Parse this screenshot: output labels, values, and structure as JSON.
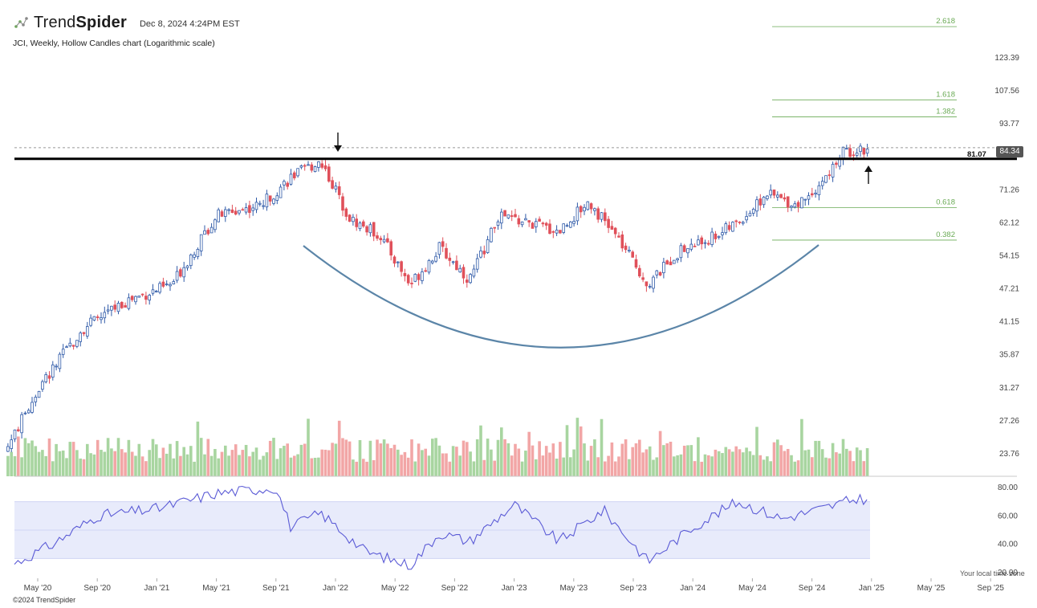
{
  "header": {
    "brand_name_regular": "Trend",
    "brand_name_bold": "Spider",
    "timestamp": "Dec 8, 2024 4:24PM EST",
    "subtitle": "JCI, Weekly, Hollow Candles chart (Logarithmic scale)"
  },
  "footer": {
    "copyright": "©2024 TrendSpider",
    "timezone_note": "Your local time zone"
  },
  "price_panel": {
    "last_price": "84.34",
    "resistance_label": "81.07",
    "resistance_value": 81.07,
    "prior_high_dashed": 84.9,
    "y_ticks": [
      "123.39",
      "107.56",
      "93.77",
      "81.07",
      "71.26",
      "62.12",
      "54.15",
      "47.21",
      "41.15",
      "35.87",
      "31.27",
      "27.26",
      "23.76"
    ],
    "fib_levels": [
      {
        "label": "2.618",
        "value": 140.5
      },
      {
        "label": "1.618",
        "value": 103.6
      },
      {
        "label": "1.382",
        "value": 96.5
      },
      {
        "label": "0.618",
        "value": 66.2
      },
      {
        "label": "0.382",
        "value": 57.8
      }
    ],
    "annotations": [
      "down-arrow at Jan '22 high",
      "up-arrow at Nov '24 breakout",
      "cup (rounded bottom) curve"
    ]
  },
  "rsi_panel": {
    "y_ticks": [
      "80.00",
      "60.00",
      "40.00",
      "20.00"
    ],
    "band_upper": 70,
    "band_lower": 30,
    "midline": 50
  },
  "x_ticks": [
    "May '20",
    "Sep '20",
    "Jan '21",
    "May '21",
    "Sep '21",
    "Jan '22",
    "May '22",
    "Sep '22",
    "Jan '23",
    "May '23",
    "Sep '23",
    "Jan '24",
    "May '24",
    "Sep '24",
    "Jan '25",
    "May '25",
    "Sep '25"
  ],
  "colors": {
    "up": "#2f5aa8",
    "down": "#e0505a",
    "vol_up": "#a8d5a0",
    "vol_down": "#f2a6a6",
    "rsi_line": "#5b5bd6",
    "rsi_band": "#e8ebfb",
    "cup": "#5b85a8",
    "fib": "#6aaa55",
    "resistance": "#000000"
  },
  "chart_data": {
    "type": "candlestick",
    "interval": "weekly",
    "scale": "log",
    "price_anchors": {
      "x": [
        "2020-03",
        "2020-05",
        "2020-08",
        "2020-11",
        "2021-02",
        "2021-05",
        "2021-08",
        "2021-10",
        "2021-12",
        "2022-02",
        "2022-04",
        "2022-06",
        "2022-08",
        "2022-10",
        "2022-12",
        "2023-02",
        "2023-04",
        "2023-06",
        "2023-08",
        "2023-10",
        "2023-12",
        "2024-02",
        "2024-04",
        "2024-06",
        "2024-08",
        "2024-10",
        "2024-11",
        "2024-12"
      ],
      "close": [
        24.5,
        31.0,
        40.0,
        45.0,
        48.0,
        64.0,
        67.0,
        75.0,
        80.5,
        63.0,
        59.0,
        48.0,
        56.0,
        49.0,
        64.0,
        62.0,
        60.0,
        68.0,
        58.0,
        48.0,
        55.0,
        58.0,
        62.0,
        70.0,
        67.0,
        75.0,
        83.0,
        84.34
      ]
    },
    "volume_relative": "shown as bars beneath price, shaded by candle direction",
    "rsi": {
      "x": [
        "2020-03",
        "2020-06",
        "2020-09",
        "2021-01",
        "2021-05",
        "2021-09",
        "2021-10",
        "2021-12",
        "2022-03",
        "2022-06",
        "2022-08",
        "2022-10",
        "2023-01",
        "2023-04",
        "2023-07",
        "2023-10",
        "2024-01",
        "2024-04",
        "2024-07",
        "2024-10",
        "2024-12"
      ],
      "value": [
        24,
        40,
        60,
        65,
        76,
        80,
        52,
        62,
        35,
        25,
        48,
        42,
        68,
        42,
        64,
        28,
        52,
        70,
        58,
        66,
        72
      ]
    }
  }
}
